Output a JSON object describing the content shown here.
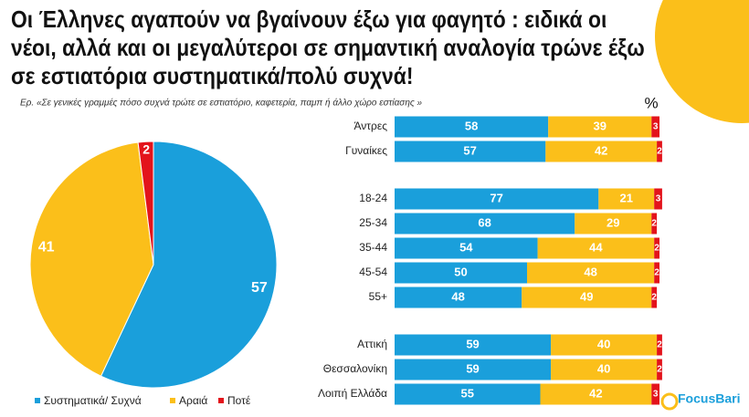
{
  "title": "Οι Έλληνες αγαπούν να βγαίνουν έξω για φαγητό : ειδικά οι νέοι, αλλά και οι μεγαλύτεροι σε σημαντική αναλογία τρώνε έξω σε εστιατόρια συστηματικά/πολύ συχνά!",
  "subtitle": "Ερ. «Σε γενικές γραμμές πόσο συχνά τρώτε σε εστιατόριο, καφετερία, παμπ ή άλλο χώρο εστίασης »",
  "unit": "%",
  "logo": "FocusBari",
  "chart_data": [
    {
      "type": "pie",
      "categories": [
        "Συστηματικά/ Συχνά",
        "Αραιά",
        "Ποτέ"
      ],
      "values": [
        57,
        41,
        2
      ],
      "colors": [
        "#1a9fdb",
        "#fbbf1a",
        "#e3131b"
      ],
      "legend": "bottom"
    },
    {
      "type": "bar",
      "orientation": "horizontal",
      "stacked": true,
      "categories": [
        "Άντρες",
        "Γυναίκες",
        "18-24",
        "25-34",
        "35-44",
        "45-54",
        "55+",
        "Αττική",
        "Θεσσαλονίκη",
        "Λοιπή Ελλάδα"
      ],
      "xlim": [
        0,
        100
      ],
      "series": [
        {
          "color": "#1a9fdb",
          "values": [
            58,
            57,
            77,
            68,
            54,
            50,
            48,
            59,
            59,
            55
          ]
        },
        {
          "color": "#fbbf1a",
          "values": [
            39,
            42,
            21,
            29,
            44,
            48,
            49,
            40,
            40,
            42
          ]
        },
        {
          "color": "#e3131b",
          "values": [
            3,
            2,
            3,
            2,
            2,
            2,
            2,
            2,
            2,
            3
          ]
        }
      ]
    }
  ]
}
